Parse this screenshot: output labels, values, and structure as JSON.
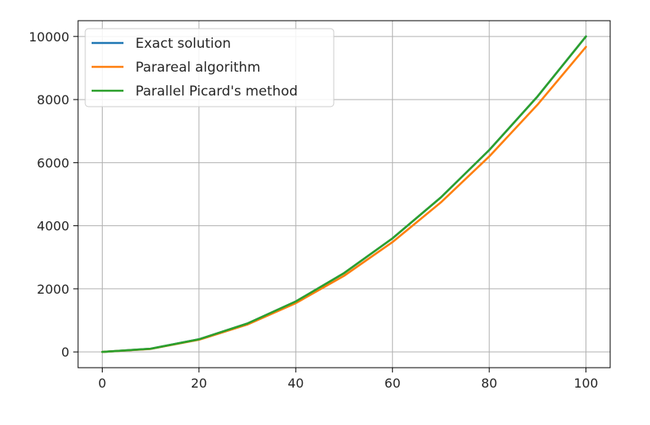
{
  "chart_data": {
    "type": "line",
    "title": "",
    "xlabel": "",
    "ylabel": "",
    "xlim": [
      -5,
      105
    ],
    "ylim": [
      -500,
      10500
    ],
    "x_ticks": [
      0,
      20,
      40,
      60,
      80,
      100
    ],
    "x_tick_labels": [
      "0",
      "20",
      "40",
      "60",
      "80",
      "100"
    ],
    "y_ticks": [
      0,
      2000,
      4000,
      6000,
      8000,
      10000
    ],
    "y_tick_labels": [
      "0",
      "2000",
      "4000",
      "6000",
      "8000",
      "10000"
    ],
    "grid": true,
    "legend_position": "top-left",
    "x": [
      0,
      10,
      20,
      30,
      40,
      50,
      60,
      70,
      80,
      90,
      100
    ],
    "series": [
      {
        "name": "Exact solution",
        "color": "#1f77b4",
        "values": [
          0,
          100,
          400,
          900,
          1600,
          2500,
          3600,
          4900,
          6400,
          8100,
          10000
        ]
      },
      {
        "name": "Parareal algorithm",
        "color": "#ff7f0e",
        "values": [
          0,
          96,
          385,
          868,
          1545,
          2415,
          3480,
          4740,
          6195,
          7840,
          9670
        ]
      },
      {
        "name": "Parallel Picard's method",
        "color": "#2ca02c",
        "values": [
          0,
          100,
          400,
          900,
          1600,
          2500,
          3600,
          4900,
          6400,
          8100,
          10000
        ]
      }
    ]
  }
}
